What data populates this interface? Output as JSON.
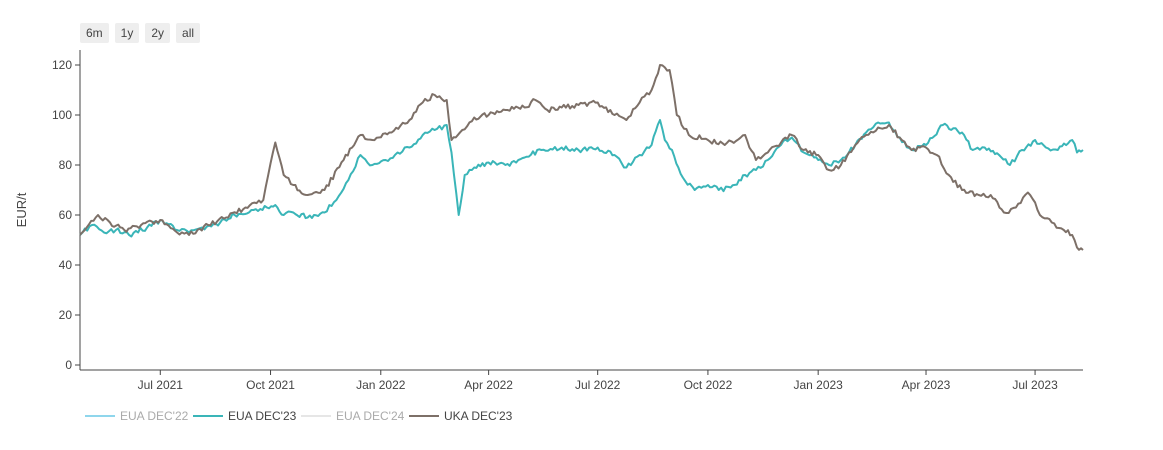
{
  "range_selector": {
    "buttons": [
      "6m",
      "1y",
      "2y",
      "all"
    ]
  },
  "chart_data": {
    "type": "line",
    "title": "",
    "xlabel": "",
    "ylabel": "EUR/t",
    "ylim": [
      0,
      125
    ],
    "xlim": [
      "2021-04-25",
      "2023-08-10"
    ],
    "yticks": [
      0,
      20,
      40,
      60,
      80,
      100,
      120
    ],
    "xticks": [
      {
        "date": "2021-07-01",
        "label": "Jul 2021"
      },
      {
        "date": "2021-10-01",
        "label": "Oct 2021"
      },
      {
        "date": "2022-01-01",
        "label": "Jan 2022"
      },
      {
        "date": "2022-04-01",
        "label": "Apr 2022"
      },
      {
        "date": "2022-07-01",
        "label": "Jul 2022"
      },
      {
        "date": "2022-10-01",
        "label": "Oct 2022"
      },
      {
        "date": "2023-01-01",
        "label": "Jan 2023"
      },
      {
        "date": "2023-04-01",
        "label": "Apr 2023"
      },
      {
        "date": "2023-07-01",
        "label": "Jul 2023"
      }
    ],
    "grid": false,
    "legend_position": "bottom-left",
    "series": [
      {
        "name": "EUA DEC'22",
        "color": "#7fd0e8",
        "visible": false,
        "points": []
      },
      {
        "name": "EUA DEC'23",
        "color": "#3ab5b8",
        "visible": true,
        "points": [
          [
            "2021-04-25",
            52
          ],
          [
            "2021-05-05",
            56
          ],
          [
            "2021-05-15",
            53
          ],
          [
            "2021-05-25",
            54
          ],
          [
            "2021-06-05",
            52
          ],
          [
            "2021-06-20",
            55
          ],
          [
            "2021-07-01",
            58
          ],
          [
            "2021-07-15",
            54
          ],
          [
            "2021-07-25",
            53
          ],
          [
            "2021-08-05",
            55
          ],
          [
            "2021-08-20",
            57
          ],
          [
            "2021-09-01",
            60
          ],
          [
            "2021-09-15",
            62
          ],
          [
            "2021-09-28",
            63
          ],
          [
            "2021-10-05",
            64
          ],
          [
            "2021-10-12",
            60
          ],
          [
            "2021-10-20",
            61
          ],
          [
            "2021-11-01",
            59
          ],
          [
            "2021-11-15",
            61
          ],
          [
            "2021-11-25",
            66
          ],
          [
            "2021-12-05",
            74
          ],
          [
            "2021-12-15",
            84
          ],
          [
            "2021-12-25",
            80
          ],
          [
            "2022-01-05",
            82
          ],
          [
            "2022-01-15",
            85
          ],
          [
            "2022-01-25",
            87
          ],
          [
            "2022-02-05",
            92
          ],
          [
            "2022-02-15",
            94
          ],
          [
            "2022-02-25",
            96
          ],
          [
            "2022-03-01",
            85
          ],
          [
            "2022-03-07",
            60
          ],
          [
            "2022-03-12",
            76
          ],
          [
            "2022-03-20",
            79
          ],
          [
            "2022-04-01",
            81
          ],
          [
            "2022-04-15",
            80
          ],
          [
            "2022-05-01",
            83
          ],
          [
            "2022-05-15",
            86
          ],
          [
            "2022-06-01",
            87
          ],
          [
            "2022-06-15",
            86
          ],
          [
            "2022-07-01",
            87
          ],
          [
            "2022-07-15",
            84
          ],
          [
            "2022-07-25",
            79
          ],
          [
            "2022-08-05",
            84
          ],
          [
            "2022-08-15",
            88
          ],
          [
            "2022-08-22",
            98
          ],
          [
            "2022-08-26",
            90
          ],
          [
            "2022-09-01",
            86
          ],
          [
            "2022-09-10",
            75
          ],
          [
            "2022-09-20",
            70
          ],
          [
            "2022-10-01",
            72
          ],
          [
            "2022-10-10",
            70
          ],
          [
            "2022-10-20",
            71
          ],
          [
            "2022-11-01",
            76
          ],
          [
            "2022-11-10",
            78
          ],
          [
            "2022-11-20",
            82
          ],
          [
            "2022-12-01",
            88
          ],
          [
            "2022-12-10",
            91
          ],
          [
            "2022-12-20",
            85
          ],
          [
            "2023-01-01",
            82
          ],
          [
            "2023-01-10",
            80
          ],
          [
            "2023-01-20",
            82
          ],
          [
            "2023-02-01",
            88
          ],
          [
            "2023-02-10",
            93
          ],
          [
            "2023-02-20",
            97
          ],
          [
            "2023-03-01",
            97
          ],
          [
            "2023-03-10",
            91
          ],
          [
            "2023-03-20",
            86
          ],
          [
            "2023-04-01",
            88
          ],
          [
            "2023-04-15",
            96
          ],
          [
            "2023-05-01",
            93
          ],
          [
            "2023-05-10",
            86
          ],
          [
            "2023-05-20",
            87
          ],
          [
            "2023-06-01",
            84
          ],
          [
            "2023-06-10",
            80
          ],
          [
            "2023-06-20",
            86
          ],
          [
            "2023-07-01",
            90
          ],
          [
            "2023-07-10",
            87
          ],
          [
            "2023-07-20",
            86
          ],
          [
            "2023-08-01",
            90
          ],
          [
            "2023-08-05",
            85
          ],
          [
            "2023-08-10",
            86
          ]
        ]
      },
      {
        "name": "EUA DEC'24",
        "color": "#cccccc",
        "visible": false,
        "points": []
      },
      {
        "name": "UKA DEC'23",
        "color": "#7d7068",
        "visible": true,
        "points": [
          [
            "2021-04-25",
            52
          ],
          [
            "2021-05-10",
            60
          ],
          [
            "2021-05-20",
            57
          ],
          [
            "2021-06-01",
            54
          ],
          [
            "2021-06-15",
            56
          ],
          [
            "2021-07-01",
            58
          ],
          [
            "2021-07-15",
            53
          ],
          [
            "2021-07-25",
            52
          ],
          [
            "2021-08-10",
            56
          ],
          [
            "2021-08-25",
            59
          ],
          [
            "2021-09-10",
            63
          ],
          [
            "2021-09-25",
            66
          ],
          [
            "2021-10-05",
            89
          ],
          [
            "2021-10-12",
            76
          ],
          [
            "2021-10-20",
            72
          ],
          [
            "2021-11-01",
            68
          ],
          [
            "2021-11-15",
            70
          ],
          [
            "2021-12-01",
            82
          ],
          [
            "2021-12-15",
            92
          ],
          [
            "2021-12-25",
            90
          ],
          [
            "2022-01-10",
            93
          ],
          [
            "2022-01-25",
            98
          ],
          [
            "2022-02-05",
            105
          ],
          [
            "2022-02-15",
            108
          ],
          [
            "2022-02-25",
            106
          ],
          [
            "2022-03-01",
            90
          ],
          [
            "2022-03-10",
            94
          ],
          [
            "2022-03-20",
            99
          ],
          [
            "2022-04-01",
            100
          ],
          [
            "2022-04-15",
            102
          ],
          [
            "2022-05-01",
            103
          ],
          [
            "2022-05-10",
            106
          ],
          [
            "2022-05-20",
            102
          ],
          [
            "2022-06-01",
            103
          ],
          [
            "2022-06-15",
            104
          ],
          [
            "2022-07-01",
            105
          ],
          [
            "2022-07-15",
            100
          ],
          [
            "2022-07-25",
            98
          ],
          [
            "2022-08-05",
            105
          ],
          [
            "2022-08-15",
            110
          ],
          [
            "2022-08-22",
            120
          ],
          [
            "2022-08-30",
            118
          ],
          [
            "2022-09-05",
            100
          ],
          [
            "2022-09-15",
            92
          ],
          [
            "2022-10-01",
            90
          ],
          [
            "2022-10-15",
            88
          ],
          [
            "2022-11-01",
            92
          ],
          [
            "2022-11-10",
            82
          ],
          [
            "2022-11-20",
            85
          ],
          [
            "2022-12-01",
            89
          ],
          [
            "2022-12-10",
            92
          ],
          [
            "2022-12-20",
            86
          ],
          [
            "2023-01-01",
            84
          ],
          [
            "2023-01-10",
            78
          ],
          [
            "2023-01-20",
            80
          ],
          [
            "2023-02-01",
            88
          ],
          [
            "2023-02-10",
            92
          ],
          [
            "2023-02-20",
            95
          ],
          [
            "2023-03-01",
            96
          ],
          [
            "2023-03-10",
            91
          ],
          [
            "2023-03-20",
            86
          ],
          [
            "2023-04-01",
            87
          ],
          [
            "2023-04-10",
            84
          ],
          [
            "2023-04-20",
            76
          ],
          [
            "2023-05-01",
            70
          ],
          [
            "2023-05-15",
            68
          ],
          [
            "2023-05-25",
            68
          ],
          [
            "2023-06-05",
            61
          ],
          [
            "2023-06-15",
            63
          ],
          [
            "2023-06-25",
            69
          ],
          [
            "2023-07-01",
            65
          ],
          [
            "2023-07-05",
            60
          ],
          [
            "2023-07-15",
            57
          ],
          [
            "2023-07-25",
            54
          ],
          [
            "2023-08-01",
            52
          ],
          [
            "2023-08-05",
            47
          ],
          [
            "2023-08-10",
            46
          ]
        ]
      }
    ]
  }
}
